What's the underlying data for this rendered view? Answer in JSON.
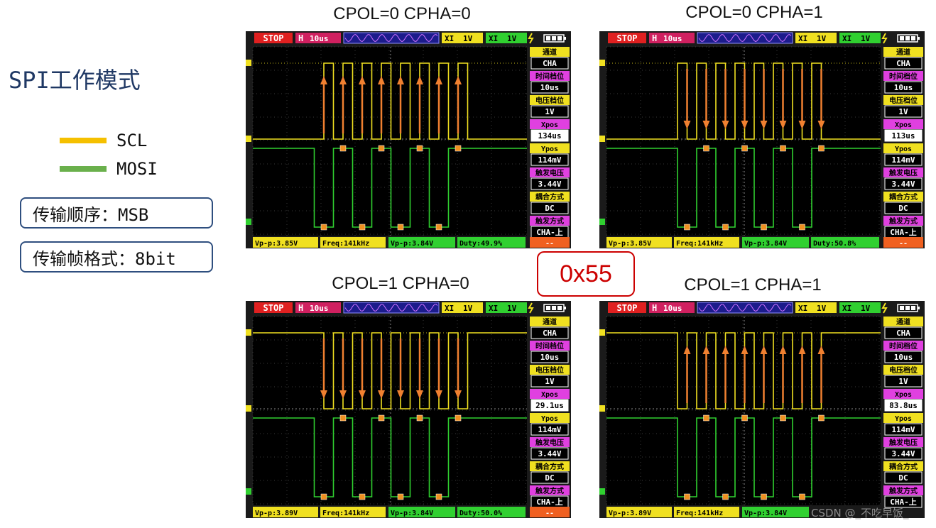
{
  "page": {
    "title": "SPI工作模式",
    "legend": [
      {
        "label": "SCL",
        "color": "#f5c000"
      },
      {
        "label": "MOSI",
        "color": "#6ab04c"
      }
    ],
    "info_boxes": [
      "传输顺序：MSB",
      "传输帧格式：8bit"
    ],
    "hex_value": "0x55",
    "watermark": "CSDN @_不吃早饭_"
  },
  "scopes": [
    {
      "title": "CPOL=0 CPHA=0",
      "cpol": 0,
      "cpha": 0,
      "top": {
        "stop": "STOP",
        "h": "H",
        "time": "10us",
        "ch1": "XI",
        "v1": "1V",
        "ch2": "XI",
        "v2": "1V"
      },
      "side": [
        {
          "label": "通道",
          "value": "CHA"
        },
        {
          "label": "时间档位",
          "value": "10us"
        },
        {
          "label": "电压档位",
          "value": "1V"
        },
        {
          "label": "Xpos",
          "value": "134us"
        },
        {
          "label": "Ypos",
          "value": "114mV"
        },
        {
          "label": "触发电压",
          "value": "3.44V"
        },
        {
          "label": "耦合方式",
          "value": "DC"
        },
        {
          "label": "触发方式",
          "value": "CHA-上"
        }
      ],
      "bottom": {
        "vpp1": "Vp-p:3.85V",
        "freq": "Freq:141kHz",
        "vpp2": "Vp-p:3.84V",
        "duty": "Duty:49.9%",
        "extra": "--"
      }
    },
    {
      "title": "CPOL=0 CPHA=1",
      "cpol": 0,
      "cpha": 1,
      "top": {
        "stop": "STOP",
        "h": "H",
        "time": "10us",
        "ch1": "XI",
        "v1": "1V",
        "ch2": "XI",
        "v2": "1V"
      },
      "side": [
        {
          "label": "通道",
          "value": "CHA"
        },
        {
          "label": "时间档位",
          "value": "10us"
        },
        {
          "label": "电压档位",
          "value": "1V"
        },
        {
          "label": "Xpos",
          "value": "113us"
        },
        {
          "label": "Ypos",
          "value": "114mV"
        },
        {
          "label": "触发电压",
          "value": "3.44V"
        },
        {
          "label": "耦合方式",
          "value": "DC"
        },
        {
          "label": "触发方式",
          "value": "CHA-上"
        }
      ],
      "bottom": {
        "vpp1": "Vp-p:3.85V",
        "freq": "Freq:141kHz",
        "vpp2": "Vp-p:3.84V",
        "duty": "Duty:50.8%",
        "extra": "--"
      }
    },
    {
      "title": "CPOL=1 CPHA=0",
      "cpol": 1,
      "cpha": 0,
      "top": {
        "stop": "STOP",
        "h": "H",
        "time": "10us",
        "ch1": "XI",
        "v1": "1V",
        "ch2": "XI",
        "v2": "1V"
      },
      "side": [
        {
          "label": "通道",
          "value": "CHA"
        },
        {
          "label": "时间档位",
          "value": "10us"
        },
        {
          "label": "电压档位",
          "value": "1V"
        },
        {
          "label": "Xpos",
          "value": "29.1us"
        },
        {
          "label": "Ypos",
          "value": "114mV"
        },
        {
          "label": "触发电压",
          "value": "3.44V"
        },
        {
          "label": "耦合方式",
          "value": "DC"
        },
        {
          "label": "触发方式",
          "value": "CHA-上"
        }
      ],
      "bottom": {
        "vpp1": "Vp-p:3.89V",
        "freq": "Freq:141kHz",
        "vpp2": "Vp-p:3.84V",
        "duty": "Duty:50.0%",
        "extra": "--"
      }
    },
    {
      "title": "CPOL=1 CPHA=1",
      "cpol": 1,
      "cpha": 1,
      "top": {
        "stop": "STOP",
        "h": "H",
        "time": "10us",
        "ch1": "XI",
        "v1": "1V",
        "ch2": "XI",
        "v2": "1V"
      },
      "side": [
        {
          "label": "通道",
          "value": "CHA"
        },
        {
          "label": "时间档位",
          "value": "10us"
        },
        {
          "label": "电压档位",
          "value": "1V"
        },
        {
          "label": "Xpos",
          "value": "83.8us"
        },
        {
          "label": "Ypos",
          "value": "114mV"
        },
        {
          "label": "触发电压",
          "value": "3.44V"
        },
        {
          "label": "耦合方式",
          "value": "DC"
        },
        {
          "label": "触发方式",
          "value": "CHA-上"
        }
      ],
      "bottom": {
        "vpp1": "Vp-p:3.89V",
        "freq": "Freq:141kHz",
        "vpp2": "Vp-p:3.84V",
        "duty": "",
        "extra": ""
      }
    }
  ]
}
